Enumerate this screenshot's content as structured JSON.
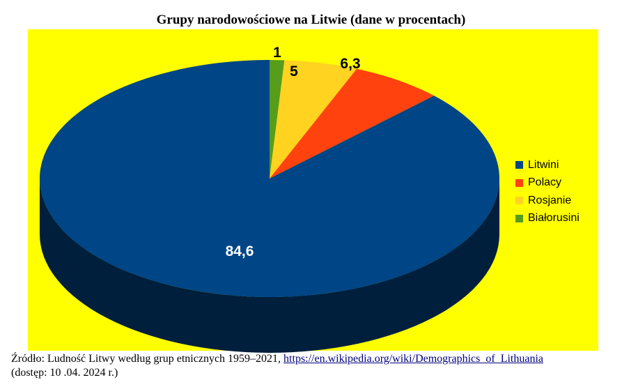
{
  "chart_data": {
    "type": "pie",
    "title": "Grupy narodowościowe na Litwie (dane w procentach)",
    "categories": [
      "Litwini",
      "Polacy",
      "Rosjanie",
      "Białorusini"
    ],
    "values": [
      84.6,
      6.3,
      5,
      1
    ],
    "value_labels": [
      "84,6",
      "6,3",
      "5",
      "1"
    ],
    "colors": [
      "#004586",
      "#ff420e",
      "#ffd320",
      "#579d1c"
    ],
    "background": "#ffff00",
    "legend_position": "right",
    "style": "3d"
  },
  "source": {
    "prefix": "Źródło: Ludność Litwy według grup etnicznych 1959–2021, ",
    "link_text": "https://en.wikipedia.org/wiki/Demographics_of_Lithuania",
    "suffix": "(dostęp: 10 .04. 2024 r.)"
  }
}
